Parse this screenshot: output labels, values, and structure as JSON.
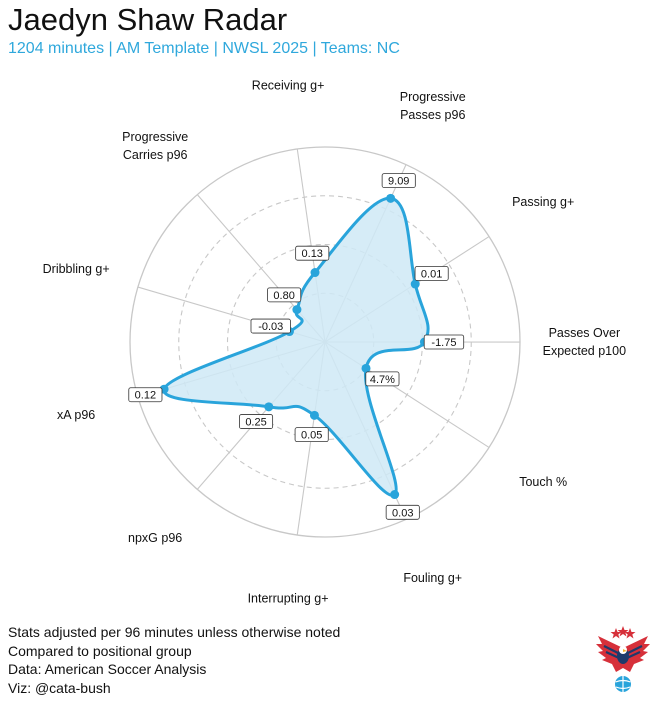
{
  "header": {
    "title": "Jaedyn Shaw Radar",
    "subtitle": "1204 minutes | AM Template | NWSL 2025 | Teams: NC"
  },
  "chart_data": {
    "type": "radar",
    "axes": [
      {
        "label": [
          "Progressive",
          "Passes p96"
        ],
        "value_label": "9.09",
        "r": 0.81
      },
      {
        "label": [
          "Passing g+"
        ],
        "value_label": "0.01",
        "r": 0.55
      },
      {
        "label": [
          "Passes Over",
          "Expected p100"
        ],
        "value_label": "-1.75",
        "r": 0.51
      },
      {
        "label": [
          "Touch %"
        ],
        "value_label": "4.7%",
        "r": 0.25
      },
      {
        "label": [
          "Fouling g+"
        ],
        "value_label": "0.03",
        "r": 0.86
      },
      {
        "label": [
          "Interrupting g+"
        ],
        "value_label": "0.05",
        "r": 0.38
      },
      {
        "label": [
          "npxG p96"
        ],
        "value_label": "0.25",
        "r": 0.44
      },
      {
        "label": [
          "xA p96"
        ],
        "value_label": "0.12",
        "r": 0.86
      },
      {
        "label": [
          "Dribbling g+"
        ],
        "value_label": "-0.03",
        "r": 0.19
      },
      {
        "label": [
          "Progressive",
          "Carries p96"
        ],
        "value_label": "0.80",
        "r": 0.22
      },
      {
        "label": [
          "Receiving g+"
        ],
        "value_label": "0.13",
        "r": 0.36
      }
    ],
    "rlim": [
      0,
      1
    ],
    "grid": true,
    "colors": {
      "fill": "#cfe9f6",
      "line": "#29a4db",
      "grid": "#c8c8c8"
    }
  },
  "footer": {
    "lines": [
      "Stats adjusted per 96 minutes unless otherwise noted",
      "Compared to positional group",
      "Data: American Soccer Analysis",
      "Viz: @cata-bush"
    ]
  },
  "logo": {
    "icon": "eagle-soccer-logo-icon"
  }
}
